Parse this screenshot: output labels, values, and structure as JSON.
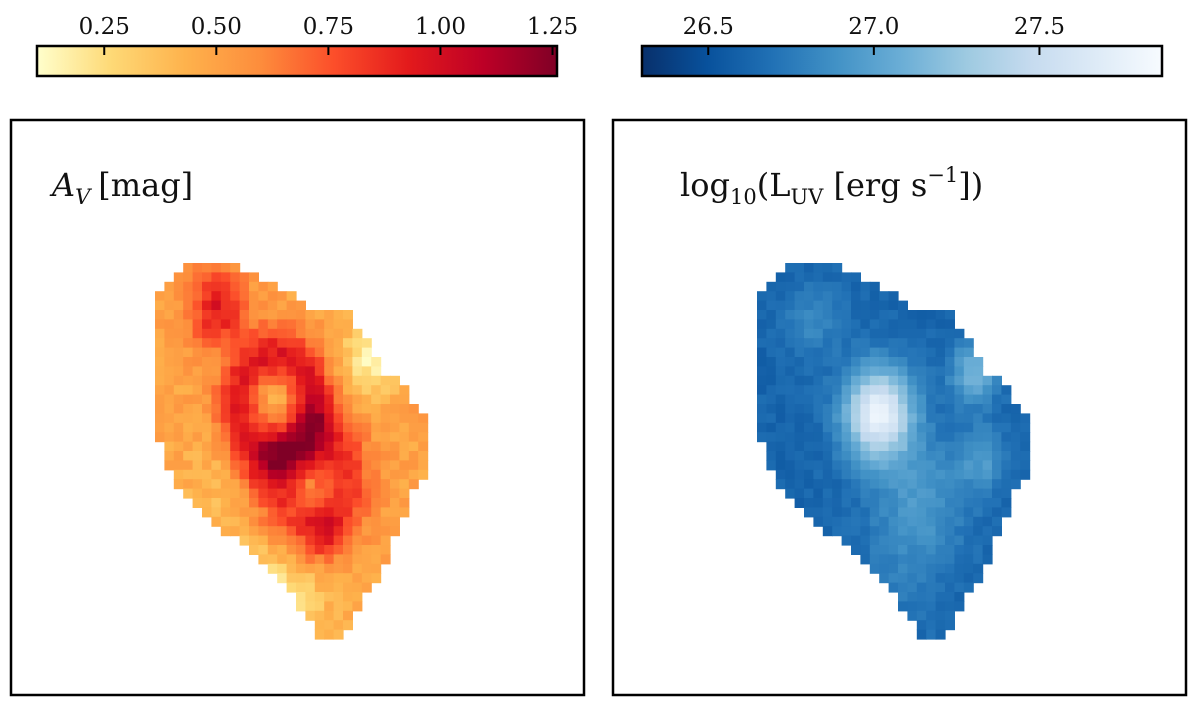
{
  "chart_data": [
    {
      "type": "heatmap",
      "title": "",
      "label": "A_V [mag]",
      "colorbar": {
        "orientation": "horizontal",
        "position": "top",
        "range": [
          0.1,
          1.26
        ],
        "ticks": [
          0.25,
          0.5,
          0.75,
          1.0,
          1.25
        ],
        "tick_labels": [
          "0.25",
          "0.50",
          "0.75",
          "1.00",
          "1.25"
        ],
        "colormap": "YlOrRd",
        "colors": [
          "#ffffcc",
          "#fed976",
          "#feb24c",
          "#fd8d3c",
          "#fc4e2a",
          "#e31a1c",
          "#bd0026",
          "#800026"
        ]
      },
      "map_model": {
        "background": 0.5,
        "rings": [
          {
            "cx": 0.43,
            "cy": 0.38,
            "r": 0.135,
            "w": 0.075,
            "amp": 0.45
          },
          {
            "cx": 0.55,
            "cy": 0.58,
            "r": 0.12,
            "w": 0.1,
            "amp": 0.35
          }
        ],
        "blobs": [
          {
            "cx": 0.22,
            "cy": 0.12,
            "s": 0.07,
            "amp": 0.45
          },
          {
            "cx": 0.43,
            "cy": 0.38,
            "s": 0.05,
            "amp": -0.15
          },
          {
            "cx": 0.76,
            "cy": 0.26,
            "s": 0.07,
            "amp": -0.32
          },
          {
            "cx": 0.6,
            "cy": 0.72,
            "s": 0.05,
            "amp": 0.25
          },
          {
            "cx": 0.2,
            "cy": 0.6,
            "s": 0.1,
            "amp": -0.08
          },
          {
            "cx": 0.42,
            "cy": 0.9,
            "s": 0.13,
            "amp": -0.3
          }
        ],
        "noise": 0.06
      }
    },
    {
      "type": "heatmap",
      "title": "",
      "label": "log10(L_UV [erg s^-1])",
      "colorbar": {
        "orientation": "horizontal",
        "position": "top",
        "range": [
          26.3,
          27.87
        ],
        "ticks": [
          26.5,
          27.0,
          27.5
        ],
        "tick_labels": [
          "26.5",
          "27.0",
          "27.5"
        ],
        "colormap": "Blues_r",
        "colors": [
          "#08306b",
          "#08519c",
          "#2171b5",
          "#4292c6",
          "#6baed6",
          "#9ecae1",
          "#c6dbef",
          "#deebf7",
          "#f7fbff"
        ]
      },
      "map_model": {
        "background": 26.62,
        "rings": [],
        "blobs": [
          {
            "cx": 0.43,
            "cy": 0.4,
            "s": 0.085,
            "amp": 1.15
          },
          {
            "cx": 0.77,
            "cy": 0.29,
            "s": 0.06,
            "amp": 0.5
          },
          {
            "cx": 0.8,
            "cy": 0.52,
            "s": 0.06,
            "amp": 0.3
          },
          {
            "cx": 0.58,
            "cy": 0.63,
            "s": 0.12,
            "amp": 0.3
          },
          {
            "cx": 0.2,
            "cy": 0.15,
            "s": 0.07,
            "amp": 0.22
          },
          {
            "cx": 0.5,
            "cy": 0.85,
            "s": 0.12,
            "amp": 0.1
          }
        ],
        "noise": 0.035
      }
    }
  ]
}
